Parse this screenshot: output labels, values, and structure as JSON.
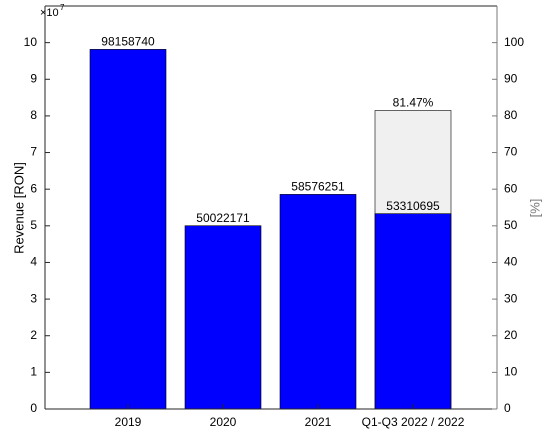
{
  "chart_data": {
    "type": "bar",
    "categories": [
      "2019",
      "2020",
      "2021",
      "Q1-Q3 2022 / 2022"
    ],
    "series": [
      {
        "color": "#0000ff",
        "values": [
          98158740,
          50022171,
          58576251,
          53310695
        ]
      },
      {
        "color": "#f0f0f0",
        "axis": "y2",
        "values": [
          null,
          null,
          null,
          81.47
        ],
        "value_labels": [
          null,
          null,
          null,
          "81.47%"
        ]
      }
    ],
    "ylabel": "Revenue [RON]",
    "y2label": "[%]",
    "y_multiplier": {
      "base": "×10",
      "exponent": "7"
    },
    "ylim": [
      0,
      110000000
    ],
    "yticks": [
      {
        "value": 0,
        "label": "0"
      },
      {
        "value": 10000000,
        "label": "1"
      },
      {
        "value": 20000000,
        "label": "2"
      },
      {
        "value": 30000000,
        "label": "3"
      },
      {
        "value": 40000000,
        "label": "4"
      },
      {
        "value": 50000000,
        "label": "5"
      },
      {
        "value": 60000000,
        "label": "6"
      },
      {
        "value": 70000000,
        "label": "7"
      },
      {
        "value": 80000000,
        "label": "8"
      },
      {
        "value": 90000000,
        "label": "9"
      },
      {
        "value": 100000000,
        "label": "10"
      }
    ],
    "y2lim": [
      0,
      110
    ],
    "y2ticks": [
      0,
      10,
      20,
      30,
      40,
      50,
      60,
      70,
      80,
      90,
      100
    ],
    "y2color": "#7a7a7a"
  }
}
